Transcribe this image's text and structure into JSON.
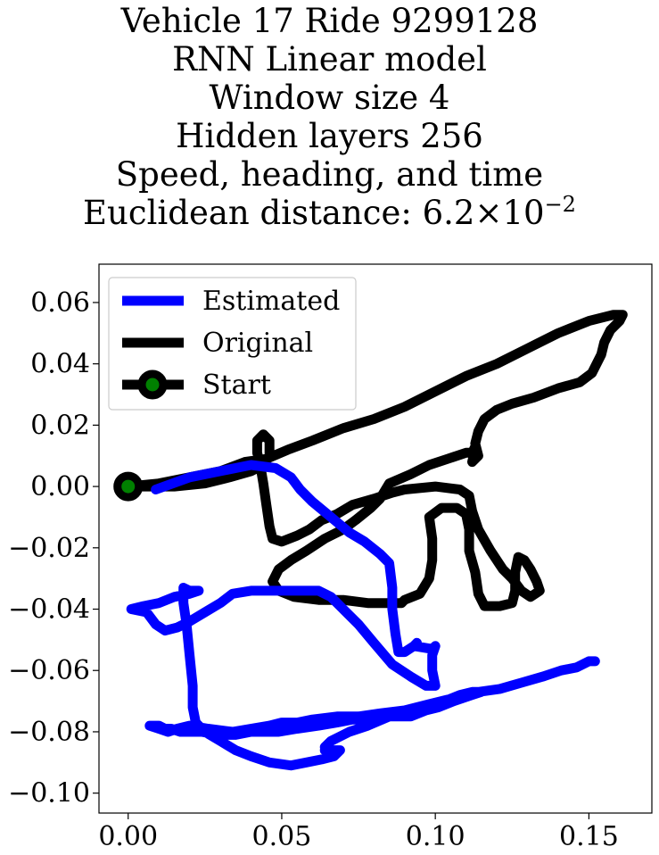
{
  "chart_data": {
    "type": "line",
    "title_lines": [
      "Vehicle 17 Ride 9299128",
      "RNN Linear model",
      "Window size 4",
      "Hidden layers 256",
      "Speed, heading, and time"
    ],
    "title_distance_prefix": "Euclidean distance: ",
    "title_distance_mantissa": "6.2",
    "title_distance_times": "×",
    "title_distance_base": "10",
    "title_distance_exponent": "−2",
    "xlim": [
      -0.0095,
      0.1705
    ],
    "ylim": [
      -0.1065,
      0.0725
    ],
    "x_ticks": [
      {
        "value": 0.0,
        "label": "0.00"
      },
      {
        "value": 0.05,
        "label": "0.05"
      },
      {
        "value": 0.1,
        "label": "0.10"
      },
      {
        "value": 0.15,
        "label": "0.15"
      }
    ],
    "y_ticks": [
      {
        "value": 0.06,
        "label": "0.06"
      },
      {
        "value": 0.04,
        "label": "0.04"
      },
      {
        "value": 0.02,
        "label": "0.02"
      },
      {
        "value": 0.0,
        "label": "0.00"
      },
      {
        "value": -0.02,
        "label": "−0.02"
      },
      {
        "value": -0.04,
        "label": "−0.04"
      },
      {
        "value": -0.06,
        "label": "−0.06"
      },
      {
        "value": -0.08,
        "label": "−0.08"
      },
      {
        "value": -0.1,
        "label": "−0.10"
      }
    ],
    "grid": false,
    "legend_position": "top-left",
    "series": [
      {
        "name": "Original",
        "color": "#000000",
        "points": [
          [
            0.0,
            0.0
          ],
          [
            0.01,
            0.001
          ],
          [
            0.02,
            0.003
          ],
          [
            0.03,
            0.005
          ],
          [
            0.038,
            0.008
          ],
          [
            0.045,
            0.009
          ],
          [
            0.052,
            0.012
          ],
          [
            0.06,
            0.015
          ],
          [
            0.07,
            0.019
          ],
          [
            0.08,
            0.022
          ],
          [
            0.09,
            0.026
          ],
          [
            0.1,
            0.031
          ],
          [
            0.11,
            0.036
          ],
          [
            0.12,
            0.04
          ],
          [
            0.13,
            0.045
          ],
          [
            0.14,
            0.05
          ],
          [
            0.15,
            0.054
          ],
          [
            0.158,
            0.056
          ],
          [
            0.161,
            0.056
          ],
          [
            0.16,
            0.054
          ],
          [
            0.157,
            0.051
          ],
          [
            0.155,
            0.047
          ],
          [
            0.154,
            0.043
          ],
          [
            0.151,
            0.037
          ],
          [
            0.147,
            0.034
          ],
          [
            0.14,
            0.032
          ],
          [
            0.132,
            0.029
          ],
          [
            0.125,
            0.027
          ],
          [
            0.12,
            0.025
          ],
          [
            0.116,
            0.022
          ],
          [
            0.114,
            0.018
          ],
          [
            0.113,
            0.014
          ],
          [
            0.114,
            0.01
          ],
          [
            0.112,
            0.008
          ],
          [
            0.113,
            0.012
          ],
          [
            0.113,
            0.013
          ],
          [
            0.112,
            0.011
          ],
          [
            0.11,
            0.011
          ],
          [
            0.104,
            0.009
          ],
          [
            0.098,
            0.007
          ],
          [
            0.092,
            0.004
          ],
          [
            0.085,
            0.001
          ],
          [
            0.082,
            -0.004
          ],
          [
            0.079,
            -0.007
          ],
          [
            0.074,
            -0.011
          ],
          [
            0.07,
            -0.014
          ],
          [
            0.064,
            -0.017
          ],
          [
            0.058,
            -0.021
          ],
          [
            0.053,
            -0.024
          ],
          [
            0.049,
            -0.027
          ],
          [
            0.047,
            -0.031
          ],
          [
            0.049,
            -0.034
          ],
          [
            0.054,
            -0.036
          ],
          [
            0.062,
            -0.037
          ],
          [
            0.07,
            -0.037
          ],
          [
            0.078,
            -0.038
          ],
          [
            0.084,
            -0.038
          ],
          [
            0.089,
            -0.038
          ],
          [
            0.09,
            -0.037
          ],
          [
            0.095,
            -0.035
          ],
          [
            0.098,
            -0.03
          ],
          [
            0.099,
            -0.024
          ],
          [
            0.099,
            -0.017
          ],
          [
            0.098,
            -0.01
          ],
          [
            0.102,
            -0.007
          ],
          [
            0.107,
            -0.007
          ],
          [
            0.11,
            -0.009
          ],
          [
            0.111,
            -0.014
          ],
          [
            0.111,
            -0.021
          ],
          [
            0.113,
            -0.028
          ],
          [
            0.114,
            -0.035
          ],
          [
            0.116,
            -0.039
          ],
          [
            0.121,
            -0.039
          ],
          [
            0.125,
            -0.038
          ],
          [
            0.126,
            -0.034
          ],
          [
            0.126,
            -0.028
          ],
          [
            0.127,
            -0.023
          ],
          [
            0.129,
            -0.024
          ],
          [
            0.131,
            -0.027
          ],
          [
            0.133,
            -0.031
          ],
          [
            0.134,
            -0.034
          ],
          [
            0.131,
            -0.036
          ],
          [
            0.128,
            -0.034
          ],
          [
            0.125,
            -0.03
          ],
          [
            0.122,
            -0.027
          ],
          [
            0.118,
            -0.021
          ],
          [
            0.114,
            -0.014
          ],
          [
            0.112,
            -0.008
          ],
          [
            0.111,
            -0.003
          ],
          [
            0.108,
            -0.001
          ],
          [
            0.1,
            0.0
          ],
          [
            0.09,
            -0.001
          ],
          [
            0.086,
            -0.002
          ],
          [
            0.08,
            -0.004
          ],
          [
            0.073,
            -0.006
          ],
          [
            0.068,
            -0.009
          ],
          [
            0.063,
            -0.011
          ],
          [
            0.059,
            -0.014
          ],
          [
            0.055,
            -0.016
          ],
          [
            0.05,
            -0.018
          ],
          [
            0.047,
            -0.017
          ],
          [
            0.046,
            -0.013
          ],
          [
            0.045,
            -0.006
          ],
          [
            0.044,
            0.001
          ],
          [
            0.043,
            0.007
          ],
          [
            0.042,
            0.011
          ],
          [
            0.042,
            0.015
          ],
          [
            0.044,
            0.017
          ],
          [
            0.046,
            0.015
          ],
          [
            0.046,
            0.01
          ],
          [
            0.044,
            0.007
          ],
          [
            0.04,
            0.005
          ],
          [
            0.033,
            0.003
          ],
          [
            0.025,
            0.001
          ],
          [
            0.015,
            0.0
          ],
          [
            0.006,
            0.0
          ],
          [
            0.0,
            0.0
          ]
        ]
      },
      {
        "name": "Estimated",
        "color": "#0000ff",
        "points": [
          [
            0.009,
            -0.001
          ],
          [
            0.02,
            0.003
          ],
          [
            0.03,
            0.005
          ],
          [
            0.04,
            0.007
          ],
          [
            0.048,
            0.006
          ],
          [
            0.053,
            0.003
          ],
          [
            0.056,
            -0.001
          ],
          [
            0.06,
            -0.005
          ],
          [
            0.066,
            -0.01
          ],
          [
            0.072,
            -0.015
          ],
          [
            0.077,
            -0.018
          ],
          [
            0.082,
            -0.022
          ],
          [
            0.085,
            -0.025
          ],
          [
            0.086,
            -0.033
          ],
          [
            0.086,
            -0.04
          ],
          [
            0.087,
            -0.048
          ],
          [
            0.088,
            -0.054
          ],
          [
            0.09,
            -0.054
          ],
          [
            0.093,
            -0.052
          ],
          [
            0.094,
            -0.051
          ],
          [
            0.093,
            -0.052
          ],
          [
            0.099,
            -0.053
          ],
          [
            0.1,
            -0.052
          ],
          [
            0.099,
            -0.055
          ],
          [
            0.099,
            -0.06
          ],
          [
            0.1,
            -0.065
          ],
          [
            0.097,
            -0.065
          ],
          [
            0.092,
            -0.062
          ],
          [
            0.086,
            -0.058
          ],
          [
            0.08,
            -0.051
          ],
          [
            0.075,
            -0.045
          ],
          [
            0.07,
            -0.04
          ],
          [
            0.066,
            -0.036
          ],
          [
            0.062,
            -0.034
          ],
          [
            0.055,
            -0.034
          ],
          [
            0.048,
            -0.034
          ],
          [
            0.04,
            -0.034
          ],
          [
            0.034,
            -0.035
          ],
          [
            0.03,
            -0.038
          ],
          [
            0.025,
            -0.041
          ],
          [
            0.02,
            -0.044
          ],
          [
            0.016,
            -0.046
          ],
          [
            0.012,
            -0.047
          ],
          [
            0.009,
            -0.045
          ],
          [
            0.006,
            -0.041
          ],
          [
            0.001,
            -0.04
          ],
          [
            0.005,
            -0.039
          ],
          [
            0.01,
            -0.038
          ],
          [
            0.015,
            -0.036
          ],
          [
            0.02,
            -0.035
          ],
          [
            0.023,
            -0.034
          ],
          [
            0.02,
            -0.034
          ],
          [
            0.018,
            -0.033
          ],
          [
            0.018,
            -0.038
          ],
          [
            0.019,
            -0.045
          ],
          [
            0.02,
            -0.055
          ],
          [
            0.021,
            -0.065
          ],
          [
            0.021,
            -0.072
          ],
          [
            0.022,
            -0.077
          ],
          [
            0.025,
            -0.08
          ],
          [
            0.03,
            -0.083
          ],
          [
            0.035,
            -0.086
          ],
          [
            0.04,
            -0.088
          ],
          [
            0.046,
            -0.09
          ],
          [
            0.053,
            -0.091
          ],
          [
            0.058,
            -0.09
          ],
          [
            0.063,
            -0.089
          ],
          [
            0.067,
            -0.088
          ],
          [
            0.069,
            -0.086
          ],
          [
            0.066,
            -0.086
          ],
          [
            0.064,
            -0.086
          ],
          [
            0.067,
            -0.087
          ],
          [
            0.064,
            -0.085
          ],
          [
            0.066,
            -0.083
          ],
          [
            0.072,
            -0.08
          ],
          [
            0.078,
            -0.078
          ],
          [
            0.085,
            -0.075
          ],
          [
            0.092,
            -0.073
          ],
          [
            0.098,
            -0.072
          ],
          [
            0.103,
            -0.07
          ],
          [
            0.108,
            -0.068
          ],
          [
            0.112,
            -0.067
          ],
          [
            0.115,
            -0.067
          ],
          [
            0.112,
            -0.068
          ],
          [
            0.106,
            -0.07
          ],
          [
            0.101,
            -0.072
          ],
          [
            0.097,
            -0.073
          ],
          [
            0.092,
            -0.075
          ],
          [
            0.088,
            -0.075
          ],
          [
            0.084,
            -0.075
          ],
          [
            0.079,
            -0.076
          ],
          [
            0.073,
            -0.076
          ],
          [
            0.068,
            -0.077
          ],
          [
            0.062,
            -0.078
          ],
          [
            0.055,
            -0.079
          ],
          [
            0.049,
            -0.08
          ],
          [
            0.044,
            -0.08
          ],
          [
            0.04,
            -0.08
          ],
          [
            0.035,
            -0.081
          ],
          [
            0.029,
            -0.081
          ],
          [
            0.024,
            -0.08
          ],
          [
            0.021,
            -0.08
          ],
          [
            0.017,
            -0.08
          ],
          [
            0.014,
            -0.079
          ],
          [
            0.012,
            -0.079
          ],
          [
            0.01,
            -0.078
          ],
          [
            0.007,
            -0.078
          ],
          [
            0.01,
            -0.079
          ],
          [
            0.013,
            -0.08
          ],
          [
            0.016,
            -0.079
          ],
          [
            0.02,
            -0.078
          ],
          [
            0.026,
            -0.079
          ],
          [
            0.034,
            -0.08
          ],
          [
            0.04,
            -0.079
          ],
          [
            0.046,
            -0.078
          ],
          [
            0.05,
            -0.077
          ],
          [
            0.055,
            -0.077
          ],
          [
            0.06,
            -0.076
          ],
          [
            0.068,
            -0.075
          ],
          [
            0.075,
            -0.075
          ],
          [
            0.082,
            -0.074
          ],
          [
            0.09,
            -0.073
          ],
          [
            0.098,
            -0.071
          ],
          [
            0.106,
            -0.069
          ],
          [
            0.114,
            -0.067
          ],
          [
            0.121,
            -0.066
          ],
          [
            0.128,
            -0.064
          ],
          [
            0.135,
            -0.062
          ],
          [
            0.141,
            -0.06
          ],
          [
            0.146,
            -0.059
          ],
          [
            0.15,
            -0.057
          ],
          [
            0.152,
            -0.057
          ]
        ]
      }
    ],
    "start": {
      "name": "Start",
      "x": 0.0,
      "y": 0.0,
      "edge_color": "#000000",
      "fill_color": "#008000"
    },
    "legend": [
      {
        "label": "Estimated",
        "color": "#0000ff",
        "marker": false
      },
      {
        "label": "Original",
        "color": "#000000",
        "marker": false
      },
      {
        "label": "Start",
        "color": "#000000",
        "marker": true,
        "marker_fill": "#008000"
      }
    ]
  }
}
